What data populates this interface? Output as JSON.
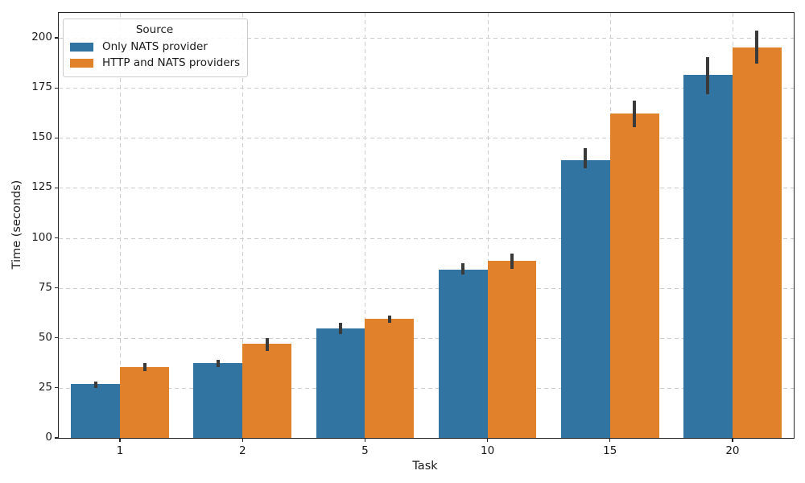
{
  "figure": {
    "xlabel": "Task",
    "ylabel": "Time (seconds)",
    "legend": {
      "title": "Source",
      "entries": [
        {
          "label": "Only NATS provider",
          "color": "#3274a1"
        },
        {
          "label": "HTTP and NATS providers",
          "color": "#e1812c"
        }
      ]
    }
  },
  "chart_data": {
    "type": "bar",
    "title": "",
    "xlabel": "Task",
    "ylabel": "Time (seconds)",
    "categories": [
      "1",
      "2",
      "5",
      "10",
      "15",
      "20"
    ],
    "series": [
      {
        "name": "Only NATS provider",
        "color": "#3274a1",
        "values": [
          26.8,
          37.3,
          54.7,
          84.0,
          139.0,
          181.5
        ],
        "ci_low": [
          25.0,
          35.5,
          52.0,
          81.5,
          135.0,
          172.0
        ],
        "ci_high": [
          28.0,
          39.0,
          57.5,
          87.5,
          145.0,
          190.5
        ]
      },
      {
        "name": "HTTP and NATS providers",
        "color": "#e1812c",
        "values": [
          35.5,
          47.0,
          59.5,
          88.5,
          162.0,
          195.3
        ],
        "ci_low": [
          33.5,
          43.5,
          57.5,
          84.5,
          155.5,
          187.0
        ],
        "ci_high": [
          37.5,
          50.0,
          61.0,
          92.0,
          168.5,
          203.5
        ]
      }
    ],
    "ylim": [
      0,
      212.5
    ],
    "yticks": [
      0,
      25,
      50,
      75,
      100,
      125,
      150,
      175,
      200
    ],
    "grid": true,
    "grid_style": "dashed",
    "legend_title": "Source",
    "legend_position": "upper left",
    "error_bar_color": "#3a3a3a",
    "bar_group_width_fraction": 0.8
  }
}
